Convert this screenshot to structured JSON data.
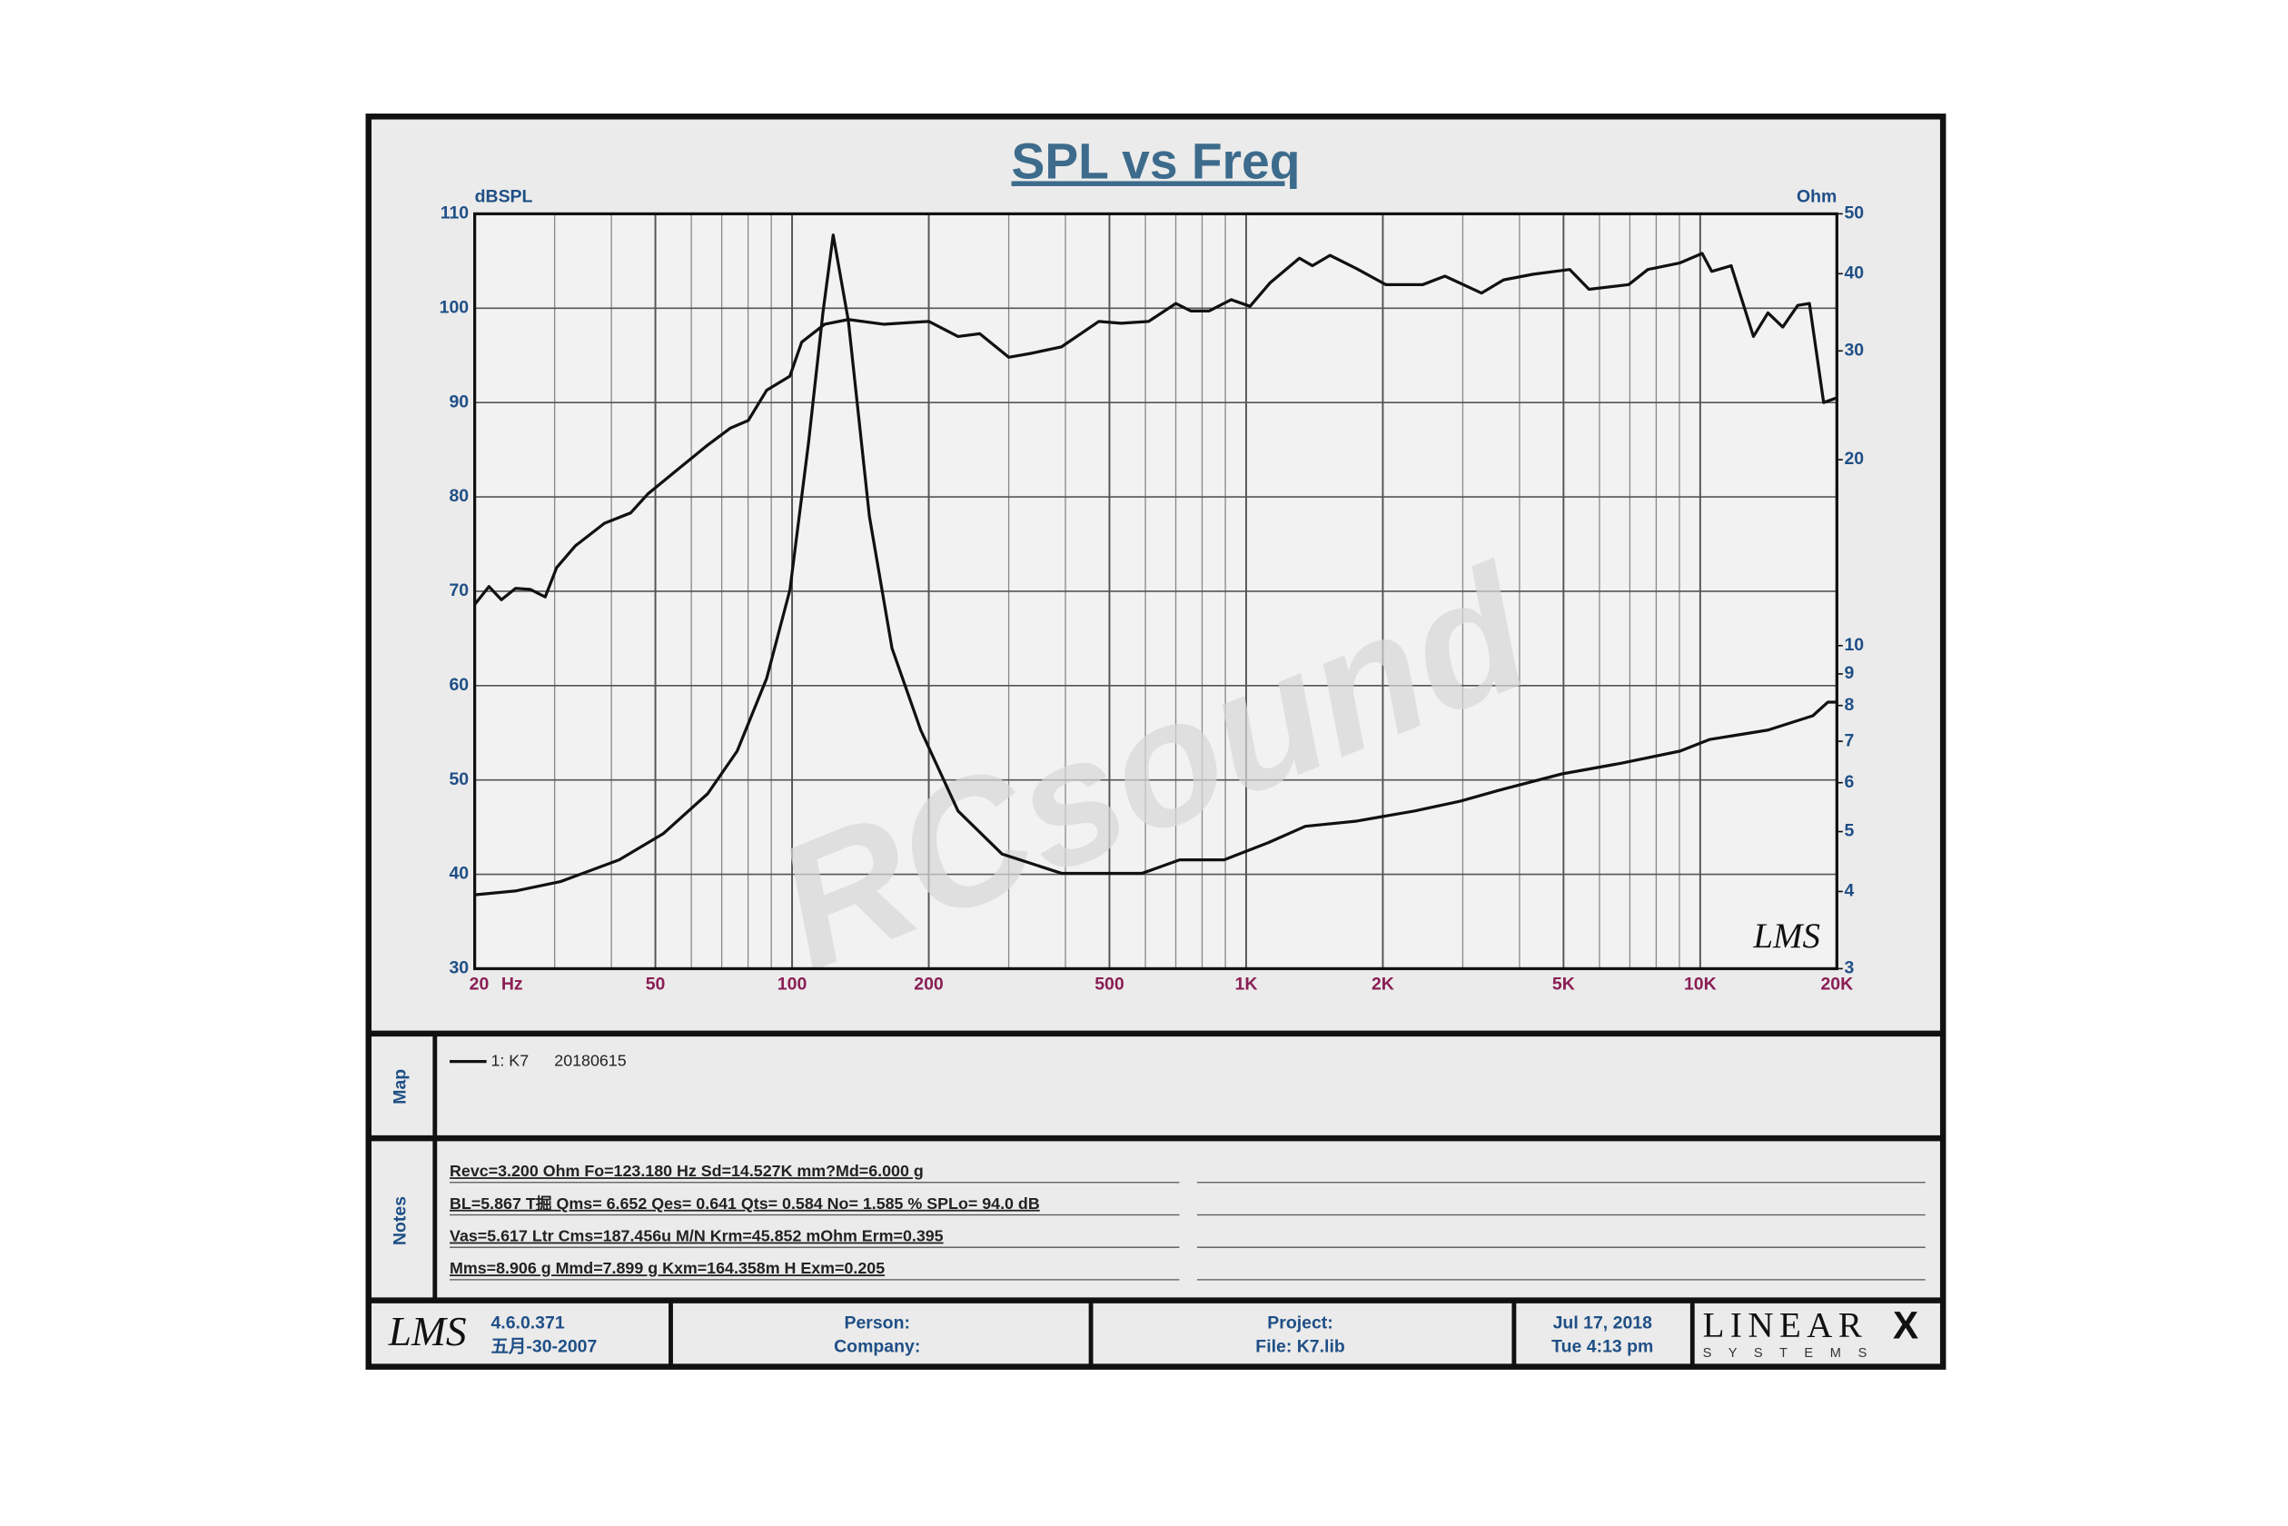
{
  "chart_data": {
    "type": "line",
    "title": "SPL vs Freq",
    "y_label": "dBSPL",
    "y2_label": "Ohm",
    "x_label": "Hz",
    "watermark": "RCsound",
    "logo": "LMS",
    "xlog": true,
    "y2log": true,
    "grid": true,
    "xlim": [
      20,
      20000
    ],
    "ylim": [
      30,
      110
    ],
    "y2lim": [
      3,
      50
    ],
    "xticks": [
      20,
      50,
      100,
      200,
      500,
      {
        "value": 1000,
        "label": "1K"
      },
      {
        "value": 2000,
        "label": "2K"
      },
      {
        "value": 5000,
        "label": "5K"
      },
      {
        "value": 10000,
        "label": "10K"
      },
      {
        "value": 20000,
        "label": "20K"
      }
    ],
    "xgrid": [
      30,
      40,
      60,
      70,
      80,
      90,
      300,
      400,
      600,
      700,
      800,
      900,
      3000,
      4000,
      6000,
      7000,
      8000,
      9000
    ],
    "yticks": [
      30,
      40,
      50,
      60,
      70,
      80,
      90,
      100,
      110
    ],
    "y2ticks": [
      3,
      4,
      5,
      6,
      7,
      8,
      9,
      10,
      20,
      30,
      40,
      50
    ],
    "series": [
      {
        "name": "1: K7",
        "color": "#111111",
        "x": [
          20,
          21.5,
          22.9,
          24.6,
          26.5,
          28.6,
          30.3,
          33.3,
          38.6,
          44.1,
          48.1,
          56.3,
          65.2,
          73.2,
          80.1,
          87.9,
          98.9,
          105,
          118,
          133,
          159,
          200,
          232,
          259,
          300,
          335,
          392,
          474,
          530,
          610,
          700,
          756,
          828,
          927,
          1020,
          1130,
          1310,
          1400,
          1530,
          1750,
          2030,
          2450,
          2740,
          3300,
          3690,
          4290,
          5160,
          5690,
          6960,
          7670,
          9030,
          10100,
          10600,
          11700,
          13100,
          14100,
          15200,
          16400,
          17400,
          18700,
          20000
        ],
        "values": [
          68.6,
          70.5,
          69.1,
          70.3,
          70.2,
          69.4,
          72.5,
          74.8,
          77.2,
          78.3,
          80.3,
          83.0,
          85.5,
          87.3,
          88.1,
          91.3,
          92.8,
          96.4,
          98.3,
          98.8,
          98.3,
          98.6,
          97.0,
          97.3,
          94.8,
          95.2,
          95.9,
          98.6,
          98.4,
          98.6,
          100.5,
          99.7,
          99.7,
          100.9,
          100.2,
          102.7,
          105.3,
          104.5,
          105.6,
          104.2,
          102.5,
          102.5,
          103.4,
          101.6,
          103.0,
          103.6,
          104.1,
          102.0,
          102.5,
          104.1,
          104.8,
          105.8,
          103.9,
          104.5,
          97.0,
          99.5,
          98.0,
          100.3,
          100.5,
          90.0,
          90.5
        ]
      },
      {
        "color": "#111111",
        "axis": "y2",
        "x": [
          20,
          24.7,
          30.9,
          41.6,
          52.0,
          65.2,
          75.7,
          87.9,
          98.9,
          108.7,
          117,
          123.18,
          133,
          148,
          166,
          192,
          232,
          290,
          392,
          590,
          714,
          894,
          1120,
          1350,
          1750,
          2350,
          2960,
          3690,
          4960,
          6690,
          9030,
          10500,
          14100,
          17700,
          19100,
          20000
        ],
        "values": [
          3.95,
          4.01,
          4.15,
          4.5,
          4.96,
          5.76,
          6.75,
          8.85,
          12.3,
          21.3,
          34.7,
          46.2,
          33.6,
          16.2,
          9.9,
          7.3,
          5.4,
          4.6,
          4.28,
          4.28,
          4.5,
          4.5,
          4.8,
          5.1,
          5.2,
          5.4,
          5.6,
          5.86,
          6.2,
          6.45,
          6.75,
          7.05,
          7.3,
          7.7,
          8.1,
          8.1
        ]
      }
    ]
  },
  "map": {
    "label": "Map",
    "date": "20180615"
  },
  "notes": {
    "label": "Notes",
    "lines": [
      "Revc=3.200 Ohm  Fo=123.180 Hz  Sd=14.527K mm?Md=6.000 g",
      "BL=5.867 T掘  Qms= 6.652  Qes= 0.641  Qts= 0.584  No= 1.585 %  SPLo= 94.0 dB",
      "Vas=5.617 Ltr  Cms=187.456u M/N  Krm=45.852 mOhm  Erm=0.395",
      "Mms=8.906 g  Mmd=7.899 g  Kxm=164.358m H  Exm=0.205"
    ]
  },
  "footer": {
    "logo": "LMS",
    "version": "4.6.0.371",
    "build_date": "五月-30-2007",
    "person": "Person:",
    "company": "Company:",
    "project": "Project:",
    "file": "File: K7.lib",
    "date": "Jul 17, 2018",
    "time": "Tue  4:13 pm",
    "brand": "LINEAR",
    "brand_mark": "X",
    "brand_sub": "S Y S T E M S"
  }
}
